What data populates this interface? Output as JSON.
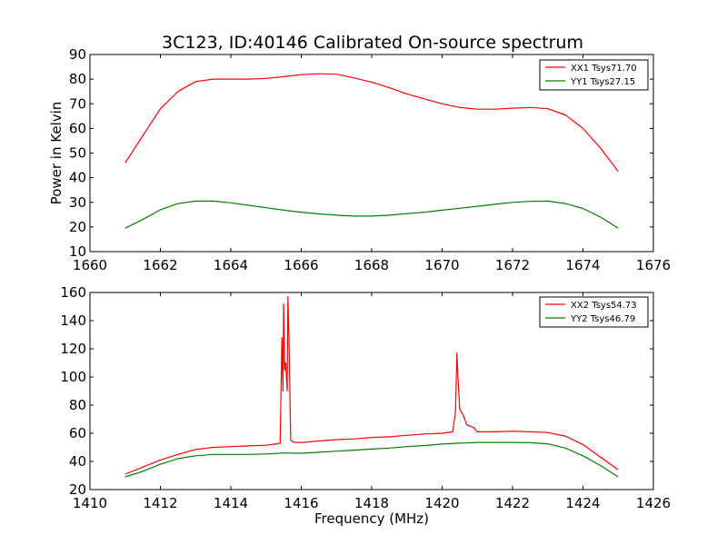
{
  "title": "3C123, ID:40146 Calibrated On-source spectrum",
  "chart_data": [
    {
      "type": "line",
      "xlabel": "",
      "ylabel": "Power in Kelvin",
      "xlim": [
        1660,
        1676
      ],
      "ylim": [
        10,
        90
      ],
      "xticks": [
        1660,
        1662,
        1664,
        1666,
        1668,
        1670,
        1672,
        1674,
        1676
      ],
      "yticks": [
        10,
        20,
        30,
        40,
        50,
        60,
        70,
        80,
        90
      ],
      "legend": "top-right",
      "series": [
        {
          "name": "XX1 Tsys71.70",
          "color": "#ff0000",
          "x": [
            1661.0,
            1661.5,
            1662.0,
            1662.5,
            1663.0,
            1663.5,
            1664.0,
            1664.5,
            1665.0,
            1665.5,
            1666.0,
            1666.5,
            1667.0,
            1667.5,
            1668.0,
            1668.5,
            1669.0,
            1669.5,
            1670.0,
            1670.5,
            1671.0,
            1671.5,
            1672.0,
            1672.5,
            1673.0,
            1673.5,
            1674.0,
            1674.5,
            1675.0
          ],
          "y": [
            46,
            57,
            68,
            75,
            79,
            80,
            80,
            80,
            80.3,
            81,
            81.8,
            82.2,
            82,
            80.5,
            78.8,
            76.5,
            74,
            72,
            70,
            68.5,
            67.8,
            67.8,
            68.2,
            68.5,
            68,
            65.5,
            60,
            52,
            42.5
          ]
        },
        {
          "name": "YY1 Tsys27.15",
          "color": "#008000",
          "x": [
            1661.0,
            1661.5,
            1662.0,
            1662.5,
            1663.0,
            1663.5,
            1664.0,
            1664.5,
            1665.0,
            1665.5,
            1666.0,
            1666.5,
            1667.0,
            1667.5,
            1668.0,
            1668.5,
            1669.0,
            1669.5,
            1670.0,
            1670.5,
            1671.0,
            1671.5,
            1672.0,
            1672.5,
            1673.0,
            1673.5,
            1674.0,
            1674.5,
            1675.0
          ],
          "y": [
            19.5,
            23,
            27,
            29.5,
            30.5,
            30.5,
            29.8,
            28.8,
            27.8,
            26.8,
            26,
            25.3,
            24.8,
            24.4,
            24.4,
            24.8,
            25.4,
            26,
            26.8,
            27.6,
            28.4,
            29.2,
            30,
            30.4,
            30.5,
            29.5,
            27.5,
            24,
            19.5
          ]
        }
      ]
    },
    {
      "type": "line",
      "xlabel": "Frequency (MHz)",
      "ylabel": "",
      "xlim": [
        1410,
        1426
      ],
      "ylim": [
        20,
        160
      ],
      "xticks": [
        1410,
        1412,
        1414,
        1416,
        1418,
        1420,
        1422,
        1424,
        1426
      ],
      "yticks": [
        20,
        40,
        60,
        80,
        100,
        120,
        140,
        160
      ],
      "legend": "top-right",
      "series": [
        {
          "name": "XX2 Tsys54.73",
          "color": "#ff0000",
          "x": [
            1411.0,
            1411.5,
            1412.0,
            1412.5,
            1413.0,
            1413.5,
            1414.0,
            1414.5,
            1415.0,
            1415.3,
            1415.4,
            1415.45,
            1415.48,
            1415.5,
            1415.53,
            1415.56,
            1415.6,
            1415.62,
            1415.65,
            1415.7,
            1415.8,
            1416.0,
            1416.5,
            1417.0,
            1417.5,
            1418.0,
            1418.5,
            1419.0,
            1419.5,
            1420.0,
            1420.3,
            1420.38,
            1420.42,
            1420.45,
            1420.5,
            1420.6,
            1420.7,
            1420.9,
            1421.0,
            1421.5,
            1422.0,
            1422.5,
            1423.0,
            1423.5,
            1424.0,
            1424.5,
            1425.0
          ],
          "y": [
            31,
            36,
            41,
            45,
            48.5,
            50,
            50.5,
            51,
            51.5,
            52.5,
            53,
            128,
            90,
            152,
            105,
            110,
            90,
            157,
            130,
            55,
            53.5,
            53.5,
            54.5,
            55.5,
            56,
            57,
            57.5,
            58.5,
            59.5,
            60,
            61,
            75,
            117,
            100,
            77,
            73,
            66,
            64,
            61,
            61,
            61.5,
            61,
            60.5,
            58,
            52,
            43,
            34
          ]
        },
        {
          "name": "YY2 Tsys46.79",
          "color": "#008000",
          "x": [
            1411.0,
            1411.5,
            1412.0,
            1412.5,
            1413.0,
            1413.5,
            1414.0,
            1414.5,
            1415.0,
            1415.5,
            1416.0,
            1416.5,
            1417.0,
            1417.5,
            1418.0,
            1418.5,
            1419.0,
            1419.5,
            1420.0,
            1420.5,
            1421.0,
            1421.5,
            1422.0,
            1422.5,
            1423.0,
            1423.5,
            1424.0,
            1424.5,
            1425.0
          ],
          "y": [
            29,
            33,
            38,
            42,
            44,
            45,
            45,
            45,
            45.3,
            46,
            45.8,
            46.5,
            47.3,
            48,
            48.8,
            49.5,
            50.5,
            51.3,
            52.3,
            53,
            53.5,
            53.5,
            53.5,
            53.3,
            52.5,
            49.5,
            44,
            37,
            29
          ]
        }
      ]
    }
  ]
}
